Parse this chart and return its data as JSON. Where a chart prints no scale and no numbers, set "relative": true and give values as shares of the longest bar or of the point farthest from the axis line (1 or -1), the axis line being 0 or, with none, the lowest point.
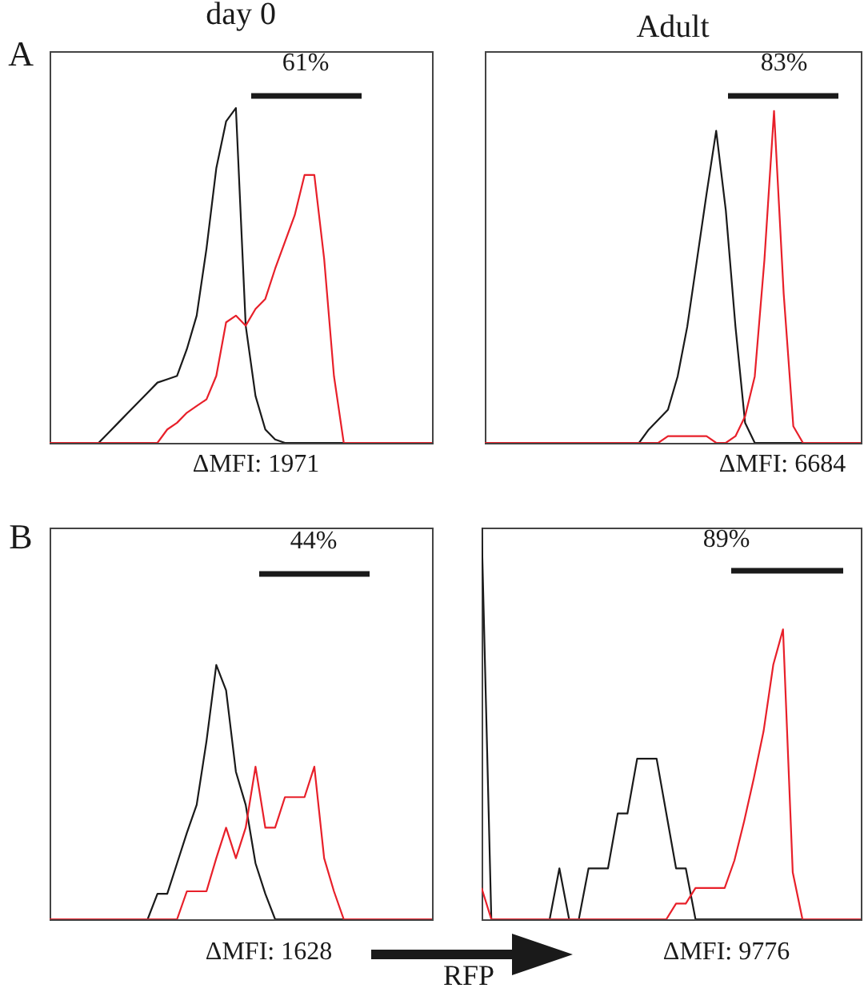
{
  "chart_data": [
    {
      "type": "line",
      "title": "day 0",
      "relative": true,
      "tick_labels": false,
      "annotations": [
        "A",
        "61%",
        "ΔMFI: 1971"
      ],
      "categories": [
        null,
        null,
        null,
        null,
        null,
        null,
        null,
        null,
        null,
        null,
        null,
        null,
        null,
        null,
        null,
        null,
        null,
        null,
        null,
        null,
        null,
        null,
        null,
        null,
        null,
        null,
        null,
        null,
        null,
        null,
        null,
        null,
        null,
        null,
        null,
        null,
        null,
        null,
        null,
        null
      ],
      "series": [
        {
          "color": "#1a1a1a",
          "values": [
            0,
            0,
            0,
            0,
            0,
            0,
            0.03,
            0.06,
            0.09,
            0.12,
            0.15,
            0.18,
            0.19,
            0.2,
            0.28,
            0.38,
            0.58,
            0.82,
            0.96,
            1.0,
            0.35,
            0.14,
            0.04,
            0.01,
            0,
            0,
            0,
            0,
            0,
            0,
            0,
            0,
            0,
            0,
            0,
            0,
            0,
            0,
            0,
            0
          ]
        },
        {
          "color": "#e8202a",
          "values": [
            0,
            0,
            0,
            0,
            0,
            0,
            0,
            0,
            0,
            0,
            0,
            0,
            0.04,
            0.06,
            0.09,
            0.11,
            0.13,
            0.2,
            0.36,
            0.38,
            0.35,
            0.4,
            0.43,
            0.52,
            0.6,
            0.68,
            0.8,
            0.8,
            0.55,
            0.2,
            0,
            0,
            0,
            0,
            0,
            0,
            0,
            0,
            0,
            0
          ]
        }
      ]
    },
    {
      "type": "line",
      "title": "Adult",
      "relative": true,
      "tick_labels": false,
      "annotations": [
        "83%",
        "ΔMFI: 6684"
      ],
      "categories": [
        null,
        null,
        null,
        null,
        null,
        null,
        null,
        null,
        null,
        null,
        null,
        null,
        null,
        null,
        null,
        null,
        null,
        null,
        null,
        null,
        null,
        null,
        null,
        null,
        null,
        null,
        null,
        null,
        null,
        null,
        null,
        null,
        null,
        null,
        null,
        null,
        null,
        null,
        null,
        null
      ],
      "series": [
        {
          "color": "#1a1a1a",
          "values": [
            0,
            0,
            0,
            0,
            0,
            0,
            0,
            0,
            0,
            0,
            0,
            0,
            0,
            0,
            0,
            0,
            0,
            0.04,
            0.07,
            0.1,
            0.2,
            0.35,
            0.55,
            0.75,
            0.94,
            0.7,
            0.35,
            0.06,
            0,
            0,
            0,
            0,
            0,
            0,
            0,
            0,
            0,
            0,
            0,
            0
          ]
        },
        {
          "color": "#e8202a",
          "values": [
            0,
            0,
            0,
            0,
            0,
            0,
            0,
            0,
            0,
            0,
            0,
            0,
            0,
            0,
            0,
            0,
            0,
            0,
            0,
            0.02,
            0.02,
            0.02,
            0.02,
            0.02,
            0,
            0,
            0.02,
            0.08,
            0.2,
            0.55,
            1.0,
            0.45,
            0.05,
            0,
            0,
            0,
            0,
            0,
            0,
            0
          ]
        }
      ]
    },
    {
      "type": "line",
      "relative": true,
      "tick_labels": false,
      "annotations": [
        "B",
        "44%",
        "ΔMFI: 1628"
      ],
      "categories": [
        null,
        null,
        null,
        null,
        null,
        null,
        null,
        null,
        null,
        null,
        null,
        null,
        null,
        null,
        null,
        null,
        null,
        null,
        null,
        null,
        null,
        null,
        null,
        null,
        null,
        null,
        null,
        null,
        null,
        null,
        null,
        null,
        null,
        null,
        null,
        null,
        null,
        null,
        null,
        null
      ],
      "series": [
        {
          "color": "#1a1a1a",
          "values": [
            0,
            0,
            0,
            0,
            0,
            0,
            0,
            0,
            0,
            0,
            0,
            0.1,
            0.1,
            0.22,
            0.34,
            0.45,
            0.7,
            1.0,
            0.9,
            0.58,
            0.45,
            0.22,
            0.1,
            0,
            0,
            0,
            0,
            0,
            0,
            0,
            0,
            0,
            0,
            0,
            0,
            0,
            0,
            0,
            0,
            0
          ]
        },
        {
          "color": "#e8202a",
          "values": [
            0,
            0,
            0,
            0,
            0,
            0,
            0,
            0,
            0,
            0,
            0,
            0,
            0,
            0,
            0.11,
            0.11,
            0.11,
            0.24,
            0.36,
            0.24,
            0.36,
            0.6,
            0.36,
            0.36,
            0.48,
            0.48,
            0.48,
            0.6,
            0.24,
            0.11,
            0,
            0,
            0,
            0,
            0,
            0,
            0,
            0,
            0,
            0
          ]
        }
      ]
    },
    {
      "type": "line",
      "relative": true,
      "tick_labels": false,
      "annotations": [
        "89%",
        "ΔMFI: 9776",
        "RFP"
      ],
      "categories": [
        null,
        null,
        null,
        null,
        null,
        null,
        null,
        null,
        null,
        null,
        null,
        null,
        null,
        null,
        null,
        null,
        null,
        null,
        null,
        null,
        null,
        null,
        null,
        null,
        null,
        null,
        null,
        null,
        null,
        null,
        null,
        null,
        null,
        null,
        null,
        null,
        null,
        null,
        null,
        null
      ],
      "series": [
        {
          "color": "#1a1a1a",
          "values": [
            1.0,
            0,
            0,
            0,
            0,
            0,
            0,
            0,
            0.13,
            0,
            0,
            0.13,
            0.13,
            0.13,
            0.27,
            0.27,
            0.41,
            0.41,
            0.41,
            0.27,
            0.13,
            0.13,
            0,
            0,
            0,
            0,
            0,
            0,
            0,
            0,
            0,
            0,
            0,
            0,
            0,
            0,
            0,
            0,
            0,
            0
          ]
        },
        {
          "color": "#e8202a",
          "values": [
            0.08,
            0,
            0,
            0,
            0,
            0,
            0,
            0,
            0,
            0,
            0,
            0,
            0,
            0,
            0,
            0,
            0,
            0,
            0,
            0,
            0.04,
            0.04,
            0.08,
            0.08,
            0.08,
            0.08,
            0.15,
            0.25,
            0.36,
            0.48,
            0.65,
            0.74,
            0.12,
            0,
            0,
            0,
            0,
            0,
            0,
            0
          ]
        }
      ]
    }
  ]
}
